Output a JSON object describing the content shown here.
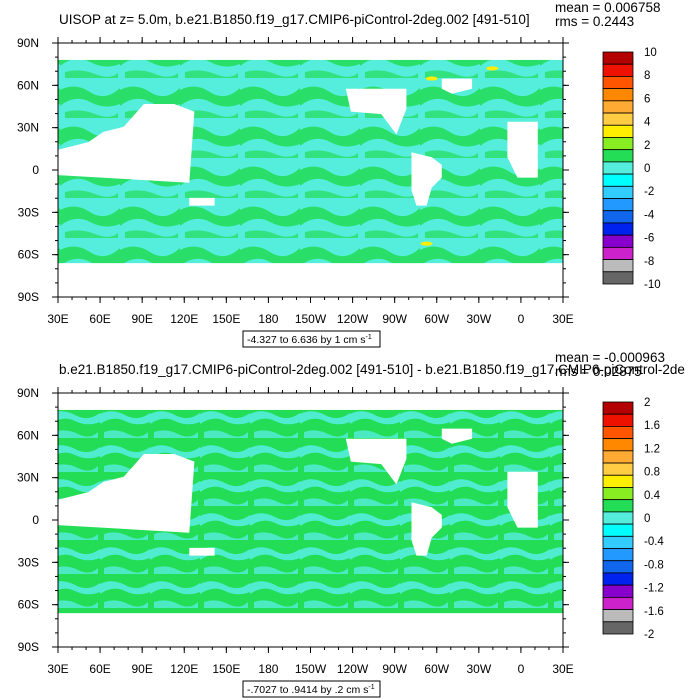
{
  "chart_data": [
    {
      "type": "heatmap",
      "title": "UISOP at z=   5.0m, b.e21.B1850.f19_g17.CMIP6-piControl-2deg.002 [491-510]",
      "stats": {
        "mean": "mean = 0.006758",
        "rms": "rms = 0.2443"
      },
      "xlabel": "",
      "ylabel": "",
      "y_ticks": [
        "90N",
        "60N",
        "30N",
        "0",
        "30S",
        "60S",
        "90S"
      ],
      "x_ticks": [
        "30E",
        "60E",
        "90E",
        "120E",
        "150E",
        "180",
        "150W",
        "120W",
        "90W",
        "60W",
        "30W",
        "0",
        "30E"
      ],
      "range_note": "-4.327 to 6.636 by 1 cm s",
      "units_exponent": "-1",
      "colorbar_labels": [
        "10",
        "8",
        "6",
        "4",
        "2",
        "0",
        "-2",
        "-4",
        "-6",
        "-8",
        "-10"
      ],
      "ylim": [
        -90,
        90
      ],
      "xlim": [
        30,
        390
      ],
      "dominant_colors": [
        "#22dd55",
        "#55eedd",
        "#ffffff"
      ]
    },
    {
      "type": "heatmap",
      "title": "b.e21.B1850.f19_g17.CMIP6-piControl-2deg.002 [491-510] - b.e21.B1850.f19_g17.CMIP6-piControl-2de",
      "stats": {
        "mean": "mean = -0.000963",
        "rms": "rms = 0.02875"
      },
      "xlabel": "",
      "ylabel": "",
      "y_ticks": [
        "90N",
        "60N",
        "30N",
        "0",
        "30S",
        "60S",
        "90S"
      ],
      "x_ticks": [
        "30E",
        "60E",
        "90E",
        "120E",
        "150E",
        "180",
        "150W",
        "120W",
        "90W",
        "60W",
        "30W",
        "0",
        "30E"
      ],
      "range_note": "-.7027 to .9414 by .2 cm s",
      "units_exponent": "-1",
      "colorbar_labels": [
        "2",
        "1.6",
        "1.2",
        "0.8",
        "0.4",
        "0",
        "-0.4",
        "-0.8",
        "-1.2",
        "-1.6",
        "-2"
      ],
      "ylim": [
        -90,
        90
      ],
      "xlim": [
        30,
        390
      ],
      "dominant_colors": [
        "#22dd55",
        "#55eedd",
        "#ffffff"
      ]
    }
  ],
  "colorbar_colors": [
    "#b30000",
    "#ee1100",
    "#ff5500",
    "#ff8800",
    "#ffaa33",
    "#ffcc44",
    "#ffee00",
    "#88ee22",
    "#22dd55",
    "#55eedd",
    "#00ffff",
    "#33ccff",
    "#2299ff",
    "#1166ee",
    "#0022ee",
    "#8800cc",
    "#cc22cc",
    "#bbbbbb",
    "#666666"
  ]
}
